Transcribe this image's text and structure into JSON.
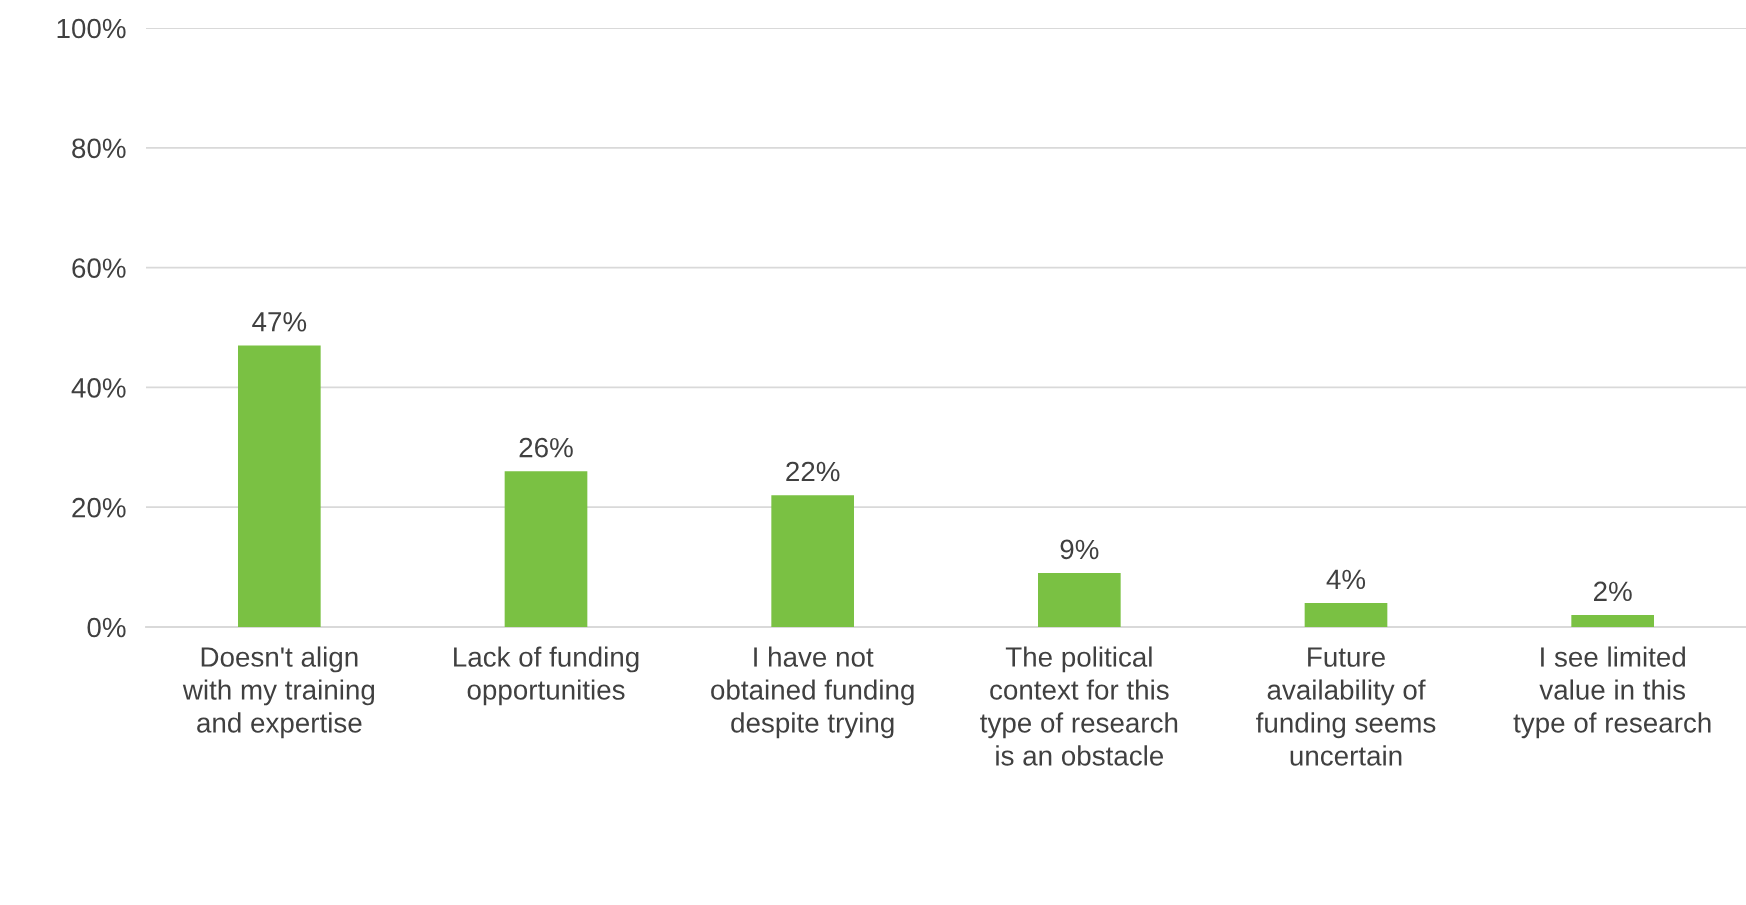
{
  "chart_data": {
    "type": "bar",
    "categories": [
      "Doesn't align with my training and expertise",
      "Lack of funding opportunities",
      "I have not obtained funding despite trying",
      "The political context for this type of research is an obstacle",
      "Future availability of funding seems uncertain",
      "I see limited value in this type of research"
    ],
    "values": [
      47,
      26,
      22,
      9,
      4,
      2
    ],
    "value_labels": [
      "47%",
      "26%",
      "22%",
      "9%",
      "4%",
      "2%"
    ],
    "color": "#7ac143",
    "ylim": [
      0,
      100
    ],
    "yticks": [
      {
        "value": 0,
        "label": "0%"
      },
      {
        "value": 20,
        "label": "20%"
      },
      {
        "value": 40,
        "label": "40%"
      },
      {
        "value": 60,
        "label": "60%"
      },
      {
        "value": 80,
        "label": "80%"
      },
      {
        "value": 100,
        "label": "100%"
      }
    ],
    "grid": "y"
  }
}
